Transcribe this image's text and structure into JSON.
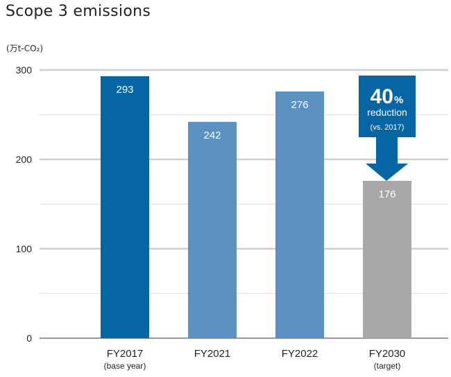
{
  "title": "Scope 3 emissions",
  "unit_label": "(万t-CO₂)",
  "colors": {
    "base_bar": "#0665a3",
    "actual_bar": "#5b91c0",
    "target_bar": "#a7a8aa",
    "callout": "#0665a3",
    "grid_major": "#cfcfcf",
    "grid_minor": "#e6e6e6",
    "axis": "#9a9a9a"
  },
  "callout": {
    "value": "40",
    "unit": "%",
    "line1": "reduction",
    "line2": "(vs. 2017)"
  },
  "chart_data": {
    "type": "bar",
    "categories": [
      "FY2017",
      "FY2021",
      "FY2022",
      "FY2030"
    ],
    "category_sublabels": [
      "(base year)",
      "",
      "",
      "(target)"
    ],
    "values": [
      293,
      242,
      276,
      176
    ],
    "value_labels": [
      "293",
      "242",
      "276",
      "176"
    ],
    "bar_color_keys": [
      "base_bar",
      "actual_bar",
      "actual_bar",
      "target_bar"
    ],
    "title": "Scope 3 emissions",
    "xlabel": "",
    "ylabel": "(万t-CO₂)",
    "ylim": [
      0,
      300
    ],
    "yticks": [
      0,
      100,
      200,
      300
    ],
    "minor_grid_step": 50,
    "grid": true,
    "legend": "none"
  }
}
